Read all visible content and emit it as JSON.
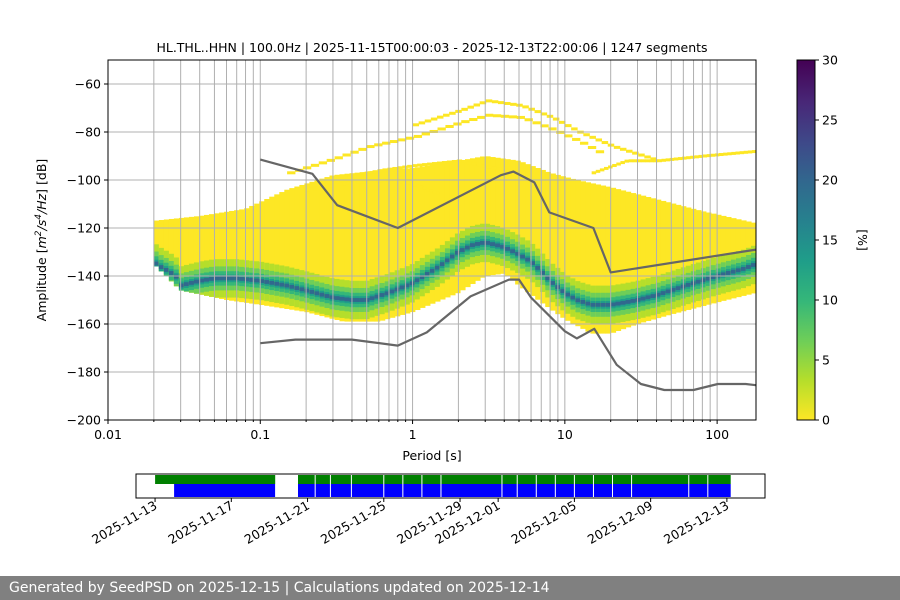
{
  "footer": {
    "generated_label": "Generated by SeedPSD on 2025-12-15",
    "separator": " | ",
    "updated_label": "Calculations updated on 2025-12-14"
  },
  "colors": {
    "noise_model": "#666666",
    "grid": "#b0b0b0",
    "availability_green": "#008000",
    "availability_blue": "#0000ff",
    "footer_bg": "#808080",
    "colormap": [
      "#fde725",
      "#b5de2b",
      "#6ece58",
      "#35b779",
      "#1f9e89",
      "#26828e",
      "#31688e",
      "#3e4989",
      "#482878",
      "#440154"
    ]
  },
  "chart_data": [
    {
      "type": "heatmap",
      "title": "HL.THL..HHN | 100.0Hz | 2025-11-15T00:00:03 - 2025-12-13T22:00:06 | 1247 segments",
      "xlabel": "Period [s]",
      "ylabel_prefix": "Amplitude [",
      "ylabel_unit_m": "m",
      "ylabel_unit_m_exp": "2",
      "ylabel_unit_sep": "/s",
      "ylabel_unit_s_exp": "4",
      "ylabel_unit_hz": "/Hz",
      "ylabel_suffix": "] [dB]",
      "x_scale": "log",
      "xlim": [
        0.01,
        180
      ],
      "ylim": [
        -200,
        -50
      ],
      "x_ticks": [
        0.01,
        0.1,
        1,
        10,
        100
      ],
      "x_tick_labels": [
        "0.01",
        "0.1",
        "1",
        "10",
        "100"
      ],
      "y_ticks": [
        -200,
        -180,
        -160,
        -140,
        -120,
        -100,
        -80,
        -60
      ],
      "y_tick_labels": [
        "−200",
        "−180",
        "−160",
        "−140",
        "−120",
        "−100",
        "−80",
        "−60"
      ],
      "grid": true,
      "series": [
        {
          "name": "PSD mode",
          "x": [
            0.02,
            0.022,
            0.025,
            0.028,
            0.03,
            0.04,
            0.05,
            0.07,
            0.1,
            0.15,
            0.2,
            0.3,
            0.4,
            0.5,
            0.7,
            1,
            1.5,
            2,
            2.5,
            3,
            3.5,
            4,
            5,
            6,
            7,
            8,
            10,
            12,
            15,
            20,
            25,
            30,
            40,
            50,
            70,
            100,
            150,
            180
          ],
          "y": [
            -134,
            -136,
            -138,
            -140,
            -144,
            -142,
            -141,
            -141,
            -142,
            -144,
            -146,
            -149,
            -150,
            -150,
            -147,
            -143,
            -136,
            -130,
            -127,
            -126,
            -127,
            -128,
            -131,
            -134,
            -138,
            -142,
            -147,
            -150,
            -152,
            -152,
            -151,
            -150,
            -148,
            -146,
            -143,
            -140,
            -137,
            -135
          ]
        },
        {
          "name": "NLNM",
          "x": [
            0.1,
            0.17,
            0.4,
            0.8,
            1.24,
            2.4,
            4.3,
            5,
            6,
            10,
            12,
            15.6,
            21.9,
            31.6,
            45,
            70,
            101,
            154,
            180
          ],
          "y": [
            -168,
            -166.5,
            -166.5,
            -169,
            -163.5,
            -148.5,
            -141.5,
            -141.5,
            -149,
            -163,
            -166,
            -162,
            -177,
            -185,
            -187.5,
            -187.5,
            -185,
            -185,
            -185.5
          ]
        },
        {
          "name": "NHNM",
          "x": [
            0.1,
            0.22,
            0.32,
            0.8,
            3.8,
            4.6,
            6.3,
            7.9,
            15.4,
            20,
            180
          ],
          "y": [
            -91.5,
            -97.4,
            -110.5,
            -120,
            -98,
            -96.5,
            -101,
            -113.5,
            -120,
            -138.5,
            -129
          ]
        }
      ],
      "coverage": {
        "name": "PSD occurrence",
        "x_start": 0.02,
        "x_end": 180,
        "upper": [
          [
            0.02,
            -117
          ],
          [
            0.04,
            -115
          ],
          [
            0.08,
            -112
          ],
          [
            0.15,
            -104
          ],
          [
            0.3,
            -98
          ],
          [
            0.6,
            -96
          ],
          [
            1,
            -95
          ],
          [
            2,
            -92
          ],
          [
            3,
            -90
          ],
          [
            5,
            -92
          ],
          [
            8,
            -97
          ],
          [
            12,
            -100
          ],
          [
            20,
            -103
          ],
          [
            40,
            -108
          ],
          [
            80,
            -113
          ],
          [
            180,
            -118
          ]
        ],
        "lower": [
          [
            0.02,
            -135
          ],
          [
            0.03,
            -146
          ],
          [
            0.06,
            -150
          ],
          [
            0.1,
            -152
          ],
          [
            0.2,
            -155
          ],
          [
            0.35,
            -159
          ],
          [
            0.6,
            -159
          ],
          [
            1,
            -155
          ],
          [
            2,
            -147
          ],
          [
            3,
            -140
          ],
          [
            4,
            -139
          ],
          [
            5,
            -144
          ],
          [
            7,
            -151
          ],
          [
            10,
            -158
          ],
          [
            15,
            -164
          ],
          [
            20,
            -164
          ],
          [
            30,
            -160
          ],
          [
            50,
            -156
          ],
          [
            100,
            -151
          ],
          [
            180,
            -147
          ]
        ]
      },
      "outlier_bands": [
        {
          "x": [
            0.15,
            0.3,
            0.5,
            1,
            2,
            3,
            5,
            8,
            12,
            18
          ],
          "y": [
            -97,
            -91,
            -86,
            -82,
            -76,
            -73,
            -74,
            -79,
            -84,
            -90
          ]
        },
        {
          "x": [
            1,
            2,
            3,
            5,
            8,
            12,
            20,
            40
          ],
          "y": [
            -77,
            -71,
            -67,
            -69,
            -74,
            -80,
            -86,
            -92
          ]
        },
        {
          "x": [
            0.3,
            0.6,
            1,
            2,
            4,
            6
          ],
          "y": [
            -100,
            -96,
            -94,
            -92,
            -96,
            -102
          ]
        },
        {
          "x": [
            0.2,
            0.4,
            0.7,
            1,
            1.5
          ],
          "y": [
            -104,
            -101,
            -100,
            -102,
            -106
          ]
        },
        {
          "x": [
            15,
            25,
            40,
            80,
            180
          ],
          "y": [
            -97,
            -92,
            -92,
            -90,
            -88
          ]
        }
      ]
    },
    {
      "type": "colorbar",
      "label": "[%]",
      "range": [
        0,
        30
      ],
      "ticks": [
        0,
        5,
        10,
        15,
        20,
        25,
        30
      ],
      "tick_labels": [
        "0",
        "5",
        "10",
        "15",
        "20",
        "25",
        "30"
      ]
    },
    {
      "type": "availability",
      "xlim": [
        "2025-11-12",
        "2025-12-15"
      ],
      "tick_dates": [
        "2025-11-13",
        "2025-11-17",
        "2025-11-21",
        "2025-11-25",
        "2025-11-29",
        "2025-12-01",
        "2025-12-05",
        "2025-12-09",
        "2025-12-13"
      ],
      "tick_labels": [
        "2025-11-13",
        "2025-11-17",
        "2025-11-21",
        "2025-11-25",
        "2025-11-29",
        "2025-12-01",
        "2025-12-05",
        "2025-12-09",
        "2025-12-13"
      ],
      "green_spans": [
        [
          "2025-11-13",
          "2025-11-19.3"
        ],
        [
          "2025-11-20.5",
          "2025-12-13.2"
        ]
      ],
      "blue_spans": [
        [
          "2025-11-14",
          "2025-11-19.3"
        ],
        [
          "2025-11-20.5",
          "2025-12-13.2"
        ]
      ],
      "gap_dates": [
        "2025-11-21.4",
        "2025-11-22.2",
        "2025-11-23.3",
        "2025-11-25",
        "2025-11-26",
        "2025-11-27",
        "2025-11-28",
        "2025-12-01.2",
        "2025-12-02",
        "2025-12-03",
        "2025-12-04",
        "2025-12-05",
        "2025-12-06",
        "2025-12-07",
        "2025-12-08",
        "2025-12-11",
        "2025-12-12"
      ]
    }
  ]
}
